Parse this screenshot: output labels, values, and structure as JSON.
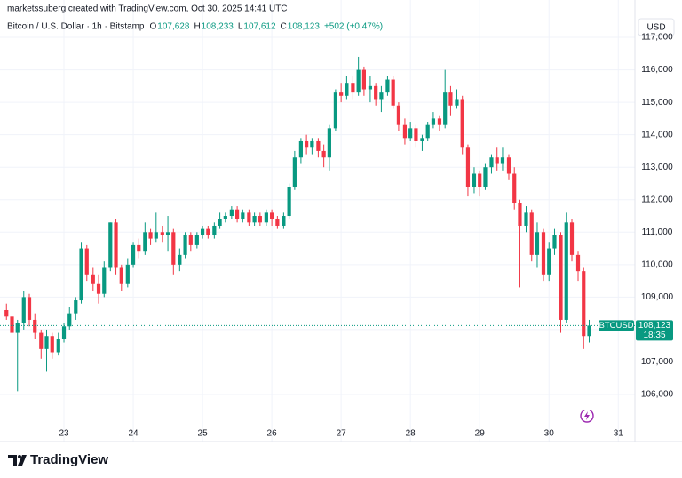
{
  "chart_data": {
    "type": "candlestick",
    "credit": "marketssuberg created with TradingView.com, Oct 30, 2025 14:41 UTC",
    "title": "Bitcoin / U.S. Dollar · 1h · Bitstamp",
    "ohlc_header": [
      {
        "label": "O",
        "value": "107,628"
      },
      {
        "label": "H",
        "value": "108,233"
      },
      {
        "label": "L",
        "value": "107,612"
      },
      {
        "label": "C",
        "value": "108,123"
      }
    ],
    "change": "+502 (+0.47%)",
    "currency": "USD",
    "logo": "TradingView",
    "last_price": {
      "symbol": "BTCUSD",
      "value": 108123,
      "label": "108,123",
      "countdown": "18:35"
    },
    "up_color": "#089981",
    "down_color": "#f23645",
    "grid": true,
    "xlim": [
      22.077,
      31.24
    ],
    "xticks": [
      23,
      24,
      25,
      26,
      27,
      28,
      29,
      30,
      31
    ],
    "ylim": [
      104550,
      118150
    ],
    "yticks": [
      {
        "value": 106000,
        "label": "106,000"
      },
      {
        "value": 107000,
        "label": "107,000"
      },
      {
        "value": 108000,
        "label": "108,000"
      },
      {
        "value": 109000,
        "label": "109,000"
      },
      {
        "value": 110000,
        "label": "110,000"
      },
      {
        "value": 111000,
        "label": "111,000"
      },
      {
        "value": 112000,
        "label": "112,000"
      },
      {
        "value": 113000,
        "label": "113,000"
      },
      {
        "value": 114000,
        "label": "114,000"
      },
      {
        "value": 115000,
        "label": "115,000"
      },
      {
        "value": 116000,
        "label": "116,000"
      },
      {
        "value": 117000,
        "label": "117,000"
      }
    ],
    "x": [
      22.17,
      22.25,
      22.33,
      22.42,
      22.5,
      22.58,
      22.67,
      22.75,
      22.83,
      22.92,
      23,
      23.08,
      23.17,
      23.25,
      23.33,
      23.42,
      23.5,
      23.58,
      23.67,
      23.75,
      23.83,
      23.92,
      24,
      24.08,
      24.17,
      24.25,
      24.33,
      24.42,
      24.5,
      24.58,
      24.67,
      24.75,
      24.83,
      24.92,
      25,
      25.08,
      25.17,
      25.25,
      25.33,
      25.42,
      25.5,
      25.58,
      25.67,
      25.75,
      25.83,
      25.92,
      26,
      26.08,
      26.17,
      26.25,
      26.33,
      26.42,
      26.5,
      26.58,
      26.67,
      26.75,
      26.83,
      26.92,
      27,
      27.08,
      27.17,
      27.25,
      27.33,
      27.42,
      27.5,
      27.58,
      27.67,
      27.75,
      27.83,
      27.92,
      28,
      28.08,
      28.17,
      28.25,
      28.33,
      28.42,
      28.5,
      28.58,
      28.67,
      28.75,
      28.83,
      28.92,
      29,
      29.08,
      29.17,
      29.25,
      29.33,
      29.42,
      29.5,
      29.58,
      29.67,
      29.75,
      29.83,
      29.92,
      30,
      30.08,
      30.17,
      30.25,
      30.33,
      30.42,
      30.5,
      30.58
    ],
    "open": [
      108600,
      108400,
      107900,
      108200,
      109000,
      108300,
      107900,
      107400,
      107800,
      107300,
      107700,
      108100,
      108500,
      108900,
      110500,
      109700,
      109400,
      109100,
      109900,
      111300,
      109900,
      109400,
      110000,
      110600,
      110400,
      111000,
      110800,
      111000,
      110900,
      111000,
      110000,
      110300,
      110900,
      110600,
      110900,
      111100,
      110900,
      111200,
      111400,
      111500,
      111700,
      111400,
      111600,
      111300,
      111500,
      111300,
      111600,
      111400,
      111200,
      111500,
      112400,
      113300,
      113800,
      113600,
      113800,
      113500,
      113300,
      114200,
      115300,
      115200,
      115600,
      115300,
      116000,
      115400,
      115500,
      115100,
      115300,
      115700,
      114900,
      114300,
      113900,
      114200,
      113800,
      113900,
      114300,
      114500,
      114300,
      115300,
      114900,
      115100,
      113600,
      112400,
      112800,
      112400,
      113000,
      113300,
      113100,
      113300,
      112800,
      111900,
      111200,
      111600,
      110300,
      111000,
      109700,
      110500,
      110900,
      108300,
      111300,
      110300,
      109800,
      107800
    ],
    "high": [
      108800,
      108500,
      108300,
      109200,
      109100,
      108500,
      108000,
      108000,
      107900,
      107900,
      108200,
      108700,
      109000,
      110700,
      110600,
      109900,
      109700,
      110100,
      111300,
      111400,
      110000,
      110200,
      110700,
      110800,
      111300,
      111100,
      111600,
      111200,
      111500,
      111100,
      110500,
      111000,
      111000,
      111000,
      111200,
      111200,
      111300,
      111600,
      111600,
      111800,
      111800,
      111700,
      111700,
      111600,
      111600,
      111700,
      111700,
      111500,
      111600,
      112500,
      113500,
      113900,
      114000,
      113900,
      113900,
      113700,
      114300,
      115400,
      115600,
      115800,
      115800,
      116400,
      116100,
      115800,
      115600,
      115500,
      115800,
      115800,
      115000,
      114500,
      114400,
      114300,
      114000,
      114400,
      114700,
      114600,
      116000,
      115500,
      115400,
      115200,
      113700,
      113000,
      112900,
      113100,
      113400,
      113600,
      113600,
      113400,
      113000,
      112000,
      111800,
      111700,
      111300,
      111100,
      110700,
      111100,
      111000,
      111600,
      111400,
      110400,
      109900,
      108300
    ],
    "low": [
      108300,
      107700,
      106100,
      108000,
      108100,
      107700,
      107100,
      106700,
      107100,
      107200,
      107600,
      108000,
      108300,
      108800,
      109500,
      109200,
      108800,
      109000,
      109800,
      109700,
      109200,
      109300,
      109900,
      110200,
      110300,
      110600,
      110700,
      110700,
      110400,
      109700,
      109800,
      110200,
      110400,
      110500,
      110800,
      110800,
      110800,
      111100,
      111300,
      111400,
      111300,
      111300,
      111200,
      111200,
      111200,
      111200,
      111200,
      111100,
      111100,
      111400,
      112300,
      113100,
      113400,
      113400,
      113300,
      113000,
      112900,
      114100,
      115000,
      115100,
      115100,
      115200,
      115200,
      115000,
      114900,
      114700,
      115200,
      114800,
      114100,
      113700,
      113800,
      113600,
      113500,
      113800,
      114200,
      114100,
      114200,
      114600,
      114800,
      113400,
      112100,
      112200,
      112100,
      112300,
      112800,
      112900,
      112900,
      112600,
      111700,
      109300,
      111000,
      110100,
      109900,
      109500,
      109500,
      110300,
      107900,
      108200,
      110100,
      109500,
      107400,
      107600
    ],
    "close": [
      108400,
      107900,
      108200,
      109000,
      108300,
      107900,
      107400,
      107800,
      107300,
      107700,
      108100,
      108500,
      108900,
      110500,
      109700,
      109400,
      109100,
      109900,
      111300,
      109900,
      109400,
      110000,
      110600,
      110400,
      111000,
      110800,
      111000,
      110900,
      111000,
      110000,
      110300,
      110900,
      110600,
      110900,
      111100,
      110900,
      111200,
      111400,
      111500,
      111700,
      111400,
      111600,
      111300,
      111500,
      111300,
      111600,
      111400,
      111200,
      111500,
      112400,
      113300,
      113800,
      113600,
      113800,
      113500,
      113300,
      114200,
      115300,
      115200,
      115600,
      115300,
      116000,
      115400,
      115500,
      115100,
      115300,
      115700,
      114900,
      114300,
      113900,
      114200,
      113800,
      113900,
      114300,
      114500,
      114300,
      115300,
      114900,
      115100,
      113600,
      112400,
      112800,
      112400,
      113000,
      113300,
      113100,
      113300,
      112800,
      111900,
      111200,
      111600,
      110300,
      111000,
      109700,
      110500,
      110900,
      108300,
      111300,
      110300,
      109800,
      107800,
      108123
    ]
  }
}
